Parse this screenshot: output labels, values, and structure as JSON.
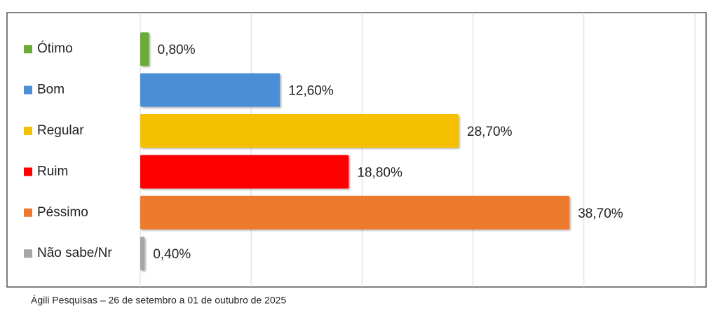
{
  "chart_data": {
    "type": "bar",
    "orientation": "horizontal",
    "categories": [
      "Ótimo",
      "Bom",
      "Regular",
      "Ruim",
      "Péssimo",
      "Não sabe/Nr"
    ],
    "values": [
      0.8,
      12.6,
      28.7,
      18.8,
      38.7,
      0.4
    ],
    "value_labels": [
      "0,80%",
      "12,60%",
      "28,70%",
      "18,80%",
      "38,70%",
      "0,40%"
    ],
    "colors": [
      "#6aab3a",
      "#4a8ed6",
      "#f5c000",
      "#ff0000",
      "#ee7a2e",
      "#a6a6a6"
    ],
    "xlim": [
      0,
      50
    ],
    "xticks": [
      0,
      10,
      20,
      30,
      40,
      50
    ],
    "grid": true,
    "source": "Ágili Pesquisas – 26 de setembro a 01 de outubro de 2025"
  }
}
